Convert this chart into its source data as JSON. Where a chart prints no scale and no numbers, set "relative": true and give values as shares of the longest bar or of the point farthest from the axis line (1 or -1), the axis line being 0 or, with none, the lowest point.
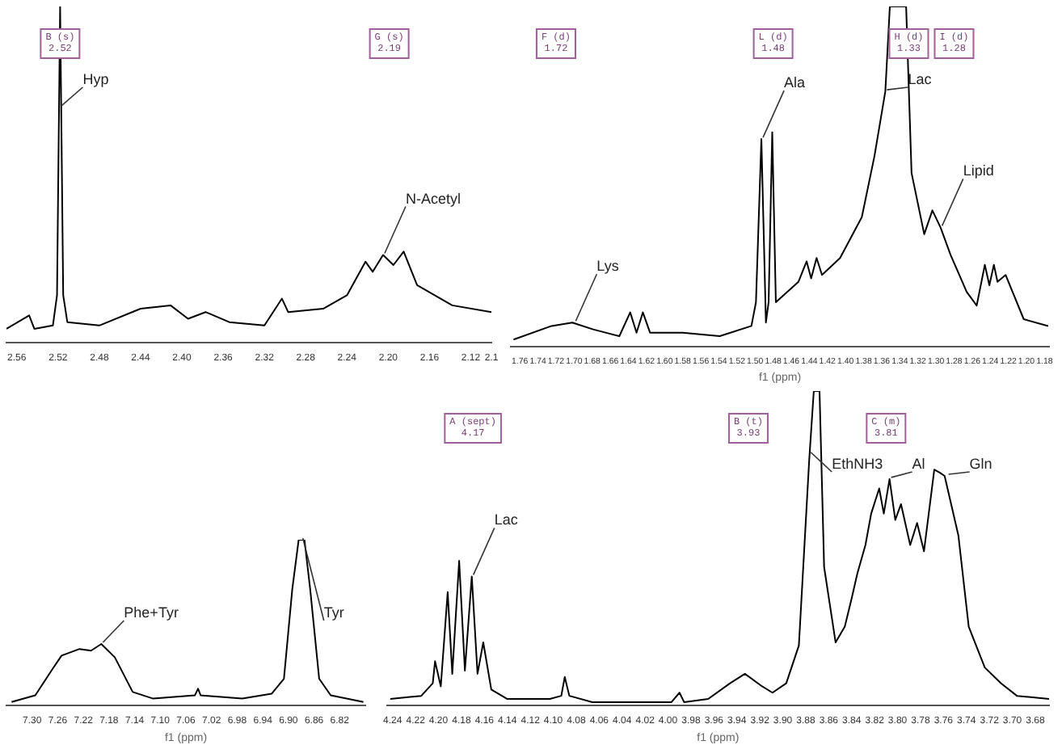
{
  "chart_data": [
    {
      "type": "line",
      "relative": true,
      "tick_labels": "x",
      "marker": "none",
      "xlim": [
        2.57,
        2.1
      ],
      "xticks": [
        2.56,
        2.52,
        2.48,
        2.44,
        {
          "value": 2.4,
          "label": "2.40"
        },
        2.36,
        2.32,
        2.28,
        2.24,
        {
          "value": 2.2,
          "label": "2.20"
        },
        2.16,
        2.12,
        2.1
      ],
      "x": [
        2.57,
        2.548,
        2.543,
        2.525,
        2.521,
        2.518,
        2.515,
        2.511,
        2.48,
        2.44,
        2.411,
        2.394,
        2.377,
        2.354,
        2.32,
        2.303,
        2.297,
        2.263,
        2.24,
        2.222,
        2.215,
        2.205,
        2.195,
        2.185,
        2.172,
        2.138,
        2.1
      ],
      "series": [
        {
          "color": "#000000",
          "values": [
            0.04,
            0.08,
            0.04,
            0.05,
            0.14,
            1,
            0.14,
            0.06,
            0.05,
            0.1,
            0.11,
            0.07,
            0.09,
            0.06,
            0.05,
            0.13,
            0.09,
            0.1,
            0.14,
            0.24,
            0.21,
            0.26,
            0.23,
            0.27,
            0.17,
            0.11,
            0.09
          ]
        }
      ],
      "annotations": [
        {
          "text": "B (s)\n2.52",
          "x": 2.518
        },
        {
          "text": "G (s)\n2.19",
          "x": 2.199
        },
        {
          "text": "Hyp",
          "x": 2.518,
          "y": 0.7
        },
        {
          "text": "N-Acetyl",
          "x": 2.205,
          "y": 0.26
        }
      ]
    },
    {
      "type": "line",
      "relative": true,
      "tick_labels": "x",
      "marker": "none",
      "xlabel": "f1 (ppm)",
      "xlim": [
        1.77,
        1.175
      ],
      "xticks": [
        1.76,
        1.74,
        1.72,
        {
          "value": 1.7,
          "label": "1.70"
        },
        1.68,
        1.66,
        1.64,
        1.62,
        {
          "value": 1.6,
          "label": "1.60"
        },
        1.58,
        1.56,
        1.54,
        1.52,
        {
          "value": 1.5,
          "label": "1.50"
        },
        1.48,
        1.46,
        1.44,
        1.42,
        {
          "value": 1.4,
          "label": "1.40"
        },
        1.38,
        1.36,
        1.34,
        1.32,
        {
          "value": 1.3,
          "label": "1.30"
        },
        1.28,
        1.26,
        1.24,
        1.22,
        {
          "value": 1.2,
          "label": "1.20"
        },
        1.18
      ],
      "x": [
        1.767,
        1.725,
        1.702,
        1.679,
        1.65,
        1.638,
        1.631,
        1.624,
        1.616,
        1.58,
        1.539,
        1.504,
        1.499,
        1.493,
        1.488,
        1.485,
        1.481,
        1.477,
        1.452,
        1.443,
        1.438,
        1.432,
        1.426,
        1.406,
        1.382,
        1.368,
        1.356,
        1.351,
        1.333,
        1.327,
        1.313,
        1.304,
        1.295,
        1.284,
        1.266,
        1.255,
        1.246,
        1.241,
        1.236,
        1.232,
        1.223,
        1.203,
        1.176
      ],
      "series": [
        {
          "color": "#000000",
          "values": [
            0.02,
            0.06,
            0.07,
            0.05,
            0.03,
            0.1,
            0.04,
            0.1,
            0.04,
            0.04,
            0.03,
            0.06,
            0.13,
            0.61,
            0.07,
            0.13,
            0.63,
            0.13,
            0.19,
            0.25,
            0.2,
            0.26,
            0.21,
            0.26,
            0.38,
            0.56,
            0.75,
            1,
            1,
            0.51,
            0.33,
            0.4,
            0.35,
            0.27,
            0.16,
            0.12,
            0.24,
            0.18,
            0.24,
            0.19,
            0.21,
            0.08,
            0.06
          ]
        }
      ],
      "annotations": [
        {
          "text": "F (d)\n1.72",
          "x": 1.72
        },
        {
          "text": "L (d)\n1.48",
          "x": 1.48
        },
        {
          "text": "H (d)\n1.33",
          "x": 1.33
        },
        {
          "text": "I (d)\n1.28",
          "x": 1.28
        },
        {
          "text": "Lys",
          "x": 1.7,
          "y": 0.07
        },
        {
          "text": "Ala",
          "x": 1.493,
          "y": 0.61
        },
        {
          "text": "Lac",
          "x": 1.356,
          "y": 0.75
        },
        {
          "text": "Lipid",
          "x": 1.295,
          "y": 0.35
        }
      ]
    },
    {
      "type": "line",
      "relative": true,
      "tick_labels": "x",
      "marker": "none",
      "xlabel": "f1 (ppm)",
      "xlim": [
        7.34,
        6.78
      ],
      "xticks": [
        {
          "value": 7.3,
          "label": "7.30"
        },
        7.26,
        7.22,
        7.18,
        7.14,
        {
          "value": 7.1,
          "label": "7.10"
        },
        7.06,
        7.02,
        6.98,
        6.94,
        {
          "value": 6.9,
          "label": "6.90"
        },
        6.86,
        6.82
      ],
      "x": [
        7.332,
        7.295,
        7.268,
        7.254,
        7.226,
        7.208,
        7.192,
        7.171,
        7.143,
        7.111,
        7.046,
        7.041,
        7.037,
        6.972,
        6.926,
        6.907,
        6.894,
        6.884,
        6.875,
        6.866,
        6.852,
        6.834,
        6.783
      ],
      "series": [
        {
          "color": "#000000",
          "values": [
            0.02,
            0.06,
            0.22,
            0.3,
            0.34,
            0.33,
            0.37,
            0.29,
            0.08,
            0.04,
            0.06,
            0.1,
            0.06,
            0.04,
            0.07,
            0.16,
            0.7,
            1,
            1,
            0.7,
            0.16,
            0.06,
            0.02
          ]
        }
      ],
      "annotations": [
        {
          "text": "Phe+Tyr",
          "x": 7.192,
          "y": 0.37
        },
        {
          "text": "Tyr",
          "x": 6.88,
          "y": 1
        }
      ]
    },
    {
      "type": "line",
      "relative": true,
      "tick_labels": "x",
      "marker": "none",
      "xlabel": "f1 (ppm)",
      "xlim": [
        4.245,
        3.668
      ],
      "xticks": [
        4.24,
        4.22,
        {
          "value": 4.2,
          "label": "4.20"
        },
        4.18,
        4.16,
        4.14,
        4.12,
        {
          "value": 4.1,
          "label": "4.10"
        },
        4.08,
        4.06,
        4.04,
        4.02,
        {
          "value": 4,
          "label": "4.00"
        },
        3.98,
        3.96,
        3.94,
        3.92,
        {
          "value": 3.9,
          "label": "3.90"
        },
        3.88,
        3.86,
        3.84,
        3.82,
        {
          "value": 3.8,
          "label": "3.80"
        },
        3.78,
        3.76,
        3.74,
        3.72,
        {
          "value": 3.7,
          "label": "3.70"
        },
        3.68
      ],
      "x": [
        4.242,
        4.215,
        4.21,
        4.205,
        4.203,
        4.198,
        4.192,
        4.188,
        4.182,
        4.177,
        4.171,
        4.166,
        4.161,
        4.154,
        4.14,
        4.103,
        4.093,
        4.09,
        4.086,
        4.066,
        4.034,
        3.997,
        3.99,
        3.986,
        3.965,
        3.946,
        3.933,
        3.918,
        3.909,
        3.897,
        3.886,
        3.877,
        3.873,
        3.868,
        3.864,
        3.854,
        3.846,
        3.84,
        3.835,
        3.828,
        3.823,
        3.816,
        3.812,
        3.807,
        3.802,
        3.797,
        3.789,
        3.783,
        3.777,
        3.768,
        3.763,
        3.759,
        3.747,
        3.738,
        3.724,
        3.71,
        3.696,
        3.668
      ],
      "series": [
        {
          "color": "#000000",
          "values": [
            0.02,
            0.03,
            0.05,
            0.07,
            0.14,
            0.06,
            0.36,
            0.1,
            0.46,
            0.11,
            0.41,
            0.1,
            0.2,
            0.05,
            0.02,
            0.02,
            0.03,
            0.09,
            0.03,
            0.01,
            0.01,
            0.01,
            0.04,
            0.01,
            0.02,
            0.07,
            0.1,
            0.06,
            0.04,
            0.07,
            0.19,
            0.78,
            1,
            1,
            0.44,
            0.2,
            0.25,
            0.34,
            0.42,
            0.51,
            0.61,
            0.69,
            0.61,
            0.72,
            0.59,
            0.64,
            0.51,
            0.58,
            0.49,
            0.75,
            0.74,
            0.73,
            0.54,
            0.25,
            0.12,
            0.07,
            0.03,
            0.02
          ]
        }
      ],
      "annotations": [
        {
          "text": "A (sept)\n4.17",
          "x": 4.17
        },
        {
          "text": "B (t)\n3.93",
          "x": 3.93
        },
        {
          "text": "C (m)\n3.81",
          "x": 3.81
        },
        {
          "text": "Lac",
          "x": 4.171,
          "y": 0.41
        },
        {
          "text": "EthNH3",
          "x": 3.877,
          "y": 0.8
        },
        {
          "text": "Al",
          "x": 3.807,
          "y": 0.72
        },
        {
          "text": "Gln",
          "x": 3.757,
          "y": 0.73
        }
      ]
    }
  ]
}
